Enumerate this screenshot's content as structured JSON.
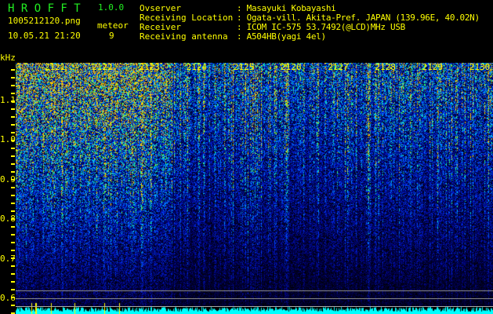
{
  "header": {
    "app_title": "H R O F F T",
    "version": "1.0.0",
    "filename": "1005212120.png",
    "datetime": "10.05.21 21:20",
    "meteor_label": "meteor",
    "meteor_count": "9"
  },
  "info": [
    {
      "label": "Ovserver",
      "value": "Masayuki Kobayashi"
    },
    {
      "label": "Receiving Location",
      "value": "Ogata-vill. Akita-Pref. JAPAN (139.96E, 40.02N)"
    },
    {
      "label": "Receiver",
      "value": "ICOM IC-575 53.7492(@LCD)MHz USB"
    },
    {
      "label": "Receiving antenna",
      "value": "A504HB(yagi 4el)"
    }
  ],
  "axis": {
    "unit": "kHz",
    "y_labels": [
      "1.1",
      "1.0",
      "0.9",
      "0.8",
      "0.7",
      "0.6"
    ],
    "time_labels": [
      "2121",
      "2122",
      "2123",
      "2124",
      "2125",
      "2126",
      "2127",
      "2128",
      "2129",
      "2130"
    ]
  },
  "colors": {
    "text": "#ffff00",
    "title": "#22ee22",
    "histogram": "#00ffff",
    "background": "#000000"
  }
}
